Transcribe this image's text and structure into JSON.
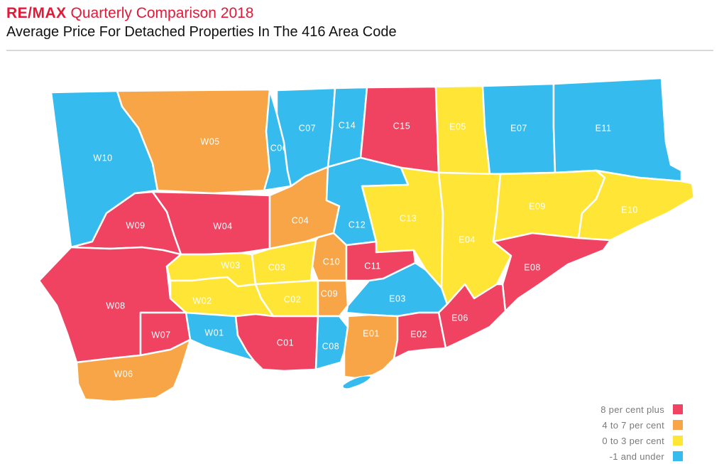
{
  "header": {
    "brand": "RE/MAX",
    "title_rest": " Quarterly Comparison 2018",
    "subtitle": "Average Price For Detached Properties In The 416 Area Code"
  },
  "colors": {
    "red": "#ef4361",
    "orange": "#f7a547",
    "yellow": "#ffe535",
    "blue": "#36bbee",
    "brand": "#e31937"
  },
  "legend": [
    {
      "label": "8 per cent plus",
      "color": "red"
    },
    {
      "label": "4 to 7 per cent",
      "color": "orange"
    },
    {
      "label": "0 to 3 per cent",
      "color": "yellow"
    },
    {
      "label": "-1 and under",
      "color": "blue"
    }
  ],
  "regions": [
    {
      "id": "W10",
      "category": "blue"
    },
    {
      "id": "W05",
      "category": "orange"
    },
    {
      "id": "C06",
      "category": "blue"
    },
    {
      "id": "C07",
      "category": "blue"
    },
    {
      "id": "C14",
      "category": "blue"
    },
    {
      "id": "C15",
      "category": "red"
    },
    {
      "id": "E05",
      "category": "yellow"
    },
    {
      "id": "E07",
      "category": "blue"
    },
    {
      "id": "E11",
      "category": "blue"
    },
    {
      "id": "W09",
      "category": "red"
    },
    {
      "id": "W04",
      "category": "red"
    },
    {
      "id": "C04",
      "category": "orange"
    },
    {
      "id": "C12",
      "category": "blue"
    },
    {
      "id": "C13",
      "category": "yellow"
    },
    {
      "id": "E04",
      "category": "yellow"
    },
    {
      "id": "E09",
      "category": "yellow"
    },
    {
      "id": "E10",
      "category": "yellow"
    },
    {
      "id": "W08",
      "category": "red"
    },
    {
      "id": "W03",
      "category": "yellow"
    },
    {
      "id": "C03",
      "category": "yellow"
    },
    {
      "id": "C10",
      "category": "orange"
    },
    {
      "id": "C11",
      "category": "red"
    },
    {
      "id": "E08",
      "category": "red"
    },
    {
      "id": "W02",
      "category": "yellow"
    },
    {
      "id": "C02",
      "category": "yellow"
    },
    {
      "id": "C09",
      "category": "orange"
    },
    {
      "id": "E03",
      "category": "blue"
    },
    {
      "id": "E06",
      "category": "red"
    },
    {
      "id": "W07",
      "category": "red"
    },
    {
      "id": "W01",
      "category": "blue"
    },
    {
      "id": "C01",
      "category": "red"
    },
    {
      "id": "C08",
      "category": "blue"
    },
    {
      "id": "E01",
      "category": "orange"
    },
    {
      "id": "E02",
      "category": "red"
    },
    {
      "id": "W06",
      "category": "orange"
    }
  ]
}
